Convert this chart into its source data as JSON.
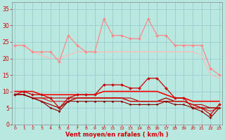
{
  "x": [
    0,
    1,
    2,
    3,
    4,
    5,
    6,
    7,
    8,
    9,
    10,
    11,
    12,
    13,
    14,
    15,
    16,
    17,
    18,
    19,
    20,
    21,
    22,
    23
  ],
  "series": [
    {
      "name": "rafales_max_spiky",
      "color": "#ff8888",
      "linewidth": 0.9,
      "marker": "D",
      "markersize": 2.0,
      "values": [
        24,
        24,
        22,
        22,
        22,
        19,
        27,
        24,
        22,
        22,
        32,
        27,
        27,
        26,
        26,
        32,
        27,
        27,
        24,
        24,
        24,
        24,
        17,
        15
      ]
    },
    {
      "name": "rafales_smooth",
      "color": "#ffbbbb",
      "linewidth": 0.9,
      "marker": null,
      "markersize": 0,
      "values": [
        24,
        24,
        22,
        21,
        20,
        20,
        21,
        22,
        22,
        22,
        22,
        22,
        22,
        22,
        22,
        22,
        22,
        22,
        22,
        22,
        22,
        21,
        15,
        14
      ]
    },
    {
      "name": "vent_spiky",
      "color": "#cc0000",
      "linewidth": 0.9,
      "marker": "D",
      "markersize": 2.0,
      "values": [
        9,
        10,
        9,
        9,
        8,
        5,
        8,
        9,
        9,
        9,
        12,
        12,
        12,
        11,
        11,
        14,
        14,
        11,
        8,
        8,
        5,
        5,
        3,
        6
      ]
    },
    {
      "name": "vent_smooth_high",
      "color": "#ff0000",
      "linewidth": 1.2,
      "marker": null,
      "markersize": 0,
      "values": [
        10,
        10,
        10,
        9,
        9,
        9,
        9,
        9,
        9,
        9,
        10,
        10,
        10,
        10,
        10,
        10,
        10,
        9,
        8,
        8,
        7,
        7,
        7,
        7
      ]
    },
    {
      "name": "vent_smooth_low",
      "color": "#990000",
      "linewidth": 0.9,
      "marker": null,
      "markersize": 0,
      "values": [
        9,
        9,
        8,
        7,
        6,
        5,
        7,
        8,
        8,
        8,
        8,
        8,
        8,
        7,
        7,
        7,
        7,
        8,
        7,
        7,
        6,
        5,
        5,
        5
      ]
    },
    {
      "name": "vent_min_spiky",
      "color": "#880000",
      "linewidth": 0.8,
      "marker": "D",
      "markersize": 1.5,
      "values": [
        9,
        9,
        8,
        7,
        5,
        4,
        7,
        7,
        7,
        7,
        7,
        7,
        7,
        6,
        6,
        6,
        6,
        7,
        6,
        6,
        5,
        4,
        2,
        5
      ]
    },
    {
      "name": "vent_flat1",
      "color": "#bb0000",
      "linewidth": 0.8,
      "marker": null,
      "markersize": 0,
      "values": [
        9,
        9,
        8,
        8,
        8,
        8,
        8,
        8,
        8,
        8,
        8,
        8,
        8,
        8,
        7,
        7,
        7,
        7,
        7,
        7,
        6,
        6,
        5,
        5
      ]
    },
    {
      "name": "vent_flat2",
      "color": "#dd1111",
      "linewidth": 0.8,
      "marker": null,
      "markersize": 0,
      "values": [
        9,
        9,
        8,
        8,
        7,
        7,
        7,
        8,
        8,
        8,
        8,
        8,
        8,
        7,
        7,
        7,
        7,
        7,
        7,
        7,
        6,
        5,
        4,
        5
      ]
    }
  ],
  "xlim": [
    -0.3,
    23.3
  ],
  "ylim": [
    0,
    37
  ],
  "yticks": [
    0,
    5,
    10,
    15,
    20,
    25,
    30,
    35
  ],
  "xticks": [
    0,
    1,
    2,
    3,
    4,
    5,
    6,
    7,
    8,
    9,
    10,
    11,
    12,
    13,
    14,
    15,
    16,
    17,
    18,
    19,
    20,
    21,
    22,
    23
  ],
  "xlabel": "Vent moyen/en rafales ( km/h )",
  "background_color": "#b8e8e0",
  "grid_color": "#99cccc",
  "tick_color": "#cc0000",
  "label_color": "#cc0000",
  "spine_color": "#888888"
}
